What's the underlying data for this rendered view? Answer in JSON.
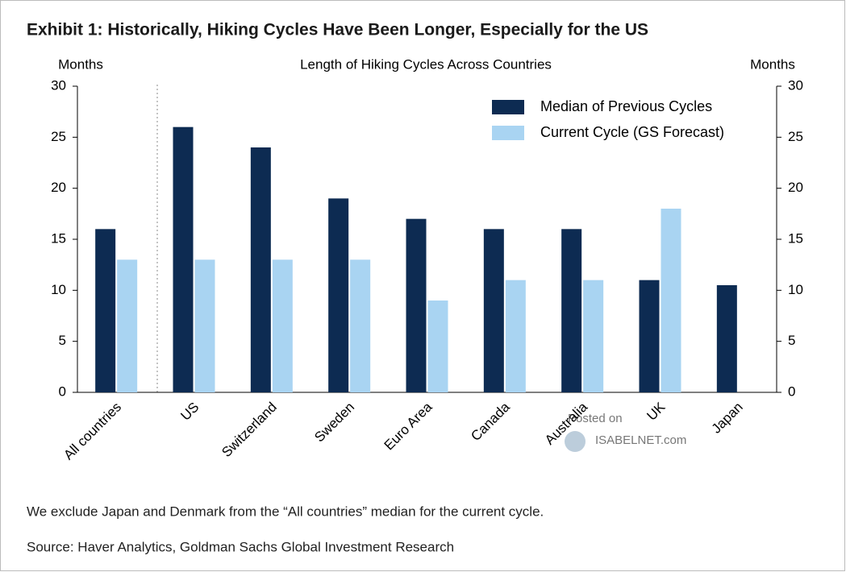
{
  "chart_data": {
    "type": "bar",
    "title": "Exhibit 1: Historically, Hiking Cycles Have Been Longer, Especially for the US",
    "subtitle": "Length of Hiking Cycles Across Countries",
    "ylabel": "Months",
    "y2label": "Months",
    "categories": [
      "All countries",
      "US",
      "Switzerland",
      "Sweden",
      "Euro Area",
      "Canada",
      "Australia",
      "UK",
      "Japan"
    ],
    "series": [
      {
        "name": "Median of Previous Cycles",
        "color": "#0d2b52",
        "values": [
          16,
          26,
          24,
          19,
          17,
          16,
          16,
          11,
          10.5
        ]
      },
      {
        "name": "Current Cycle (GS Forecast)",
        "color": "#a9d4f2",
        "values": [
          13,
          13,
          13,
          13,
          9,
          11,
          11,
          18,
          null
        ]
      }
    ],
    "ylim": [
      0,
      30
    ],
    "yticks": [
      0,
      5,
      10,
      15,
      20,
      25,
      30
    ],
    "y2lim": [
      0,
      30
    ],
    "y2ticks": [
      0,
      5,
      10,
      15,
      20,
      25,
      30
    ],
    "grid": false,
    "legend": "top-right",
    "note": "We exclude Japan and Denmark from the “All countries” median for the current cycle.",
    "source": "Source: Haver Analytics, Goldman Sachs Global Investment Research",
    "watermark": [
      "Posted on",
      "ISABELNET.com"
    ]
  }
}
